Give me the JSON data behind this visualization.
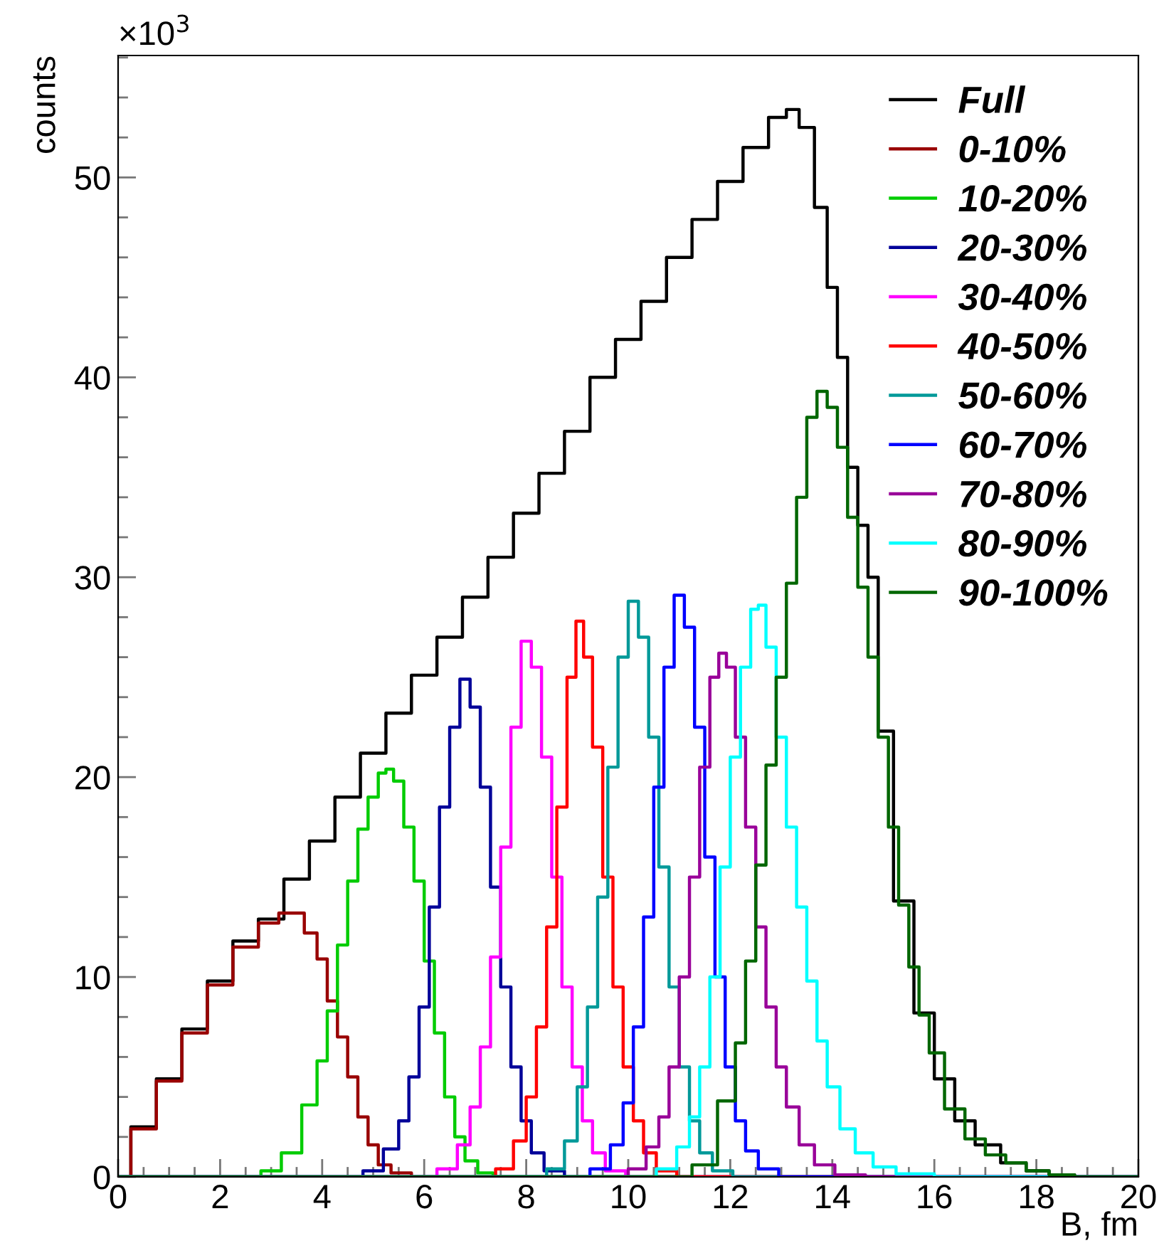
{
  "chart_data": {
    "type": "step",
    "xlabel": "B, fm",
    "ylabel": "counts",
    "annotations": [
      "×10$^{3}$"
    ],
    "xlim": [
      0,
      20
    ],
    "xticks": [
      0,
      2,
      4,
      6,
      8,
      10,
      12,
      14,
      16,
      18,
      20
    ],
    "ylim": [
      0,
      56.1
    ],
    "yticks": [
      0,
      10,
      20,
      30,
      40,
      50
    ],
    "grid": false,
    "legend": "top right",
    "series": [
      {
        "name": "Full",
        "color": "#000000",
        "x": [
          0,
          0.5,
          1,
          1.5,
          2,
          2.5,
          3,
          3.5,
          4,
          4.5,
          5,
          5.5,
          6,
          6.5,
          7,
          7.5,
          8,
          8.5,
          9,
          9.5,
          10,
          10.5,
          11,
          11.5,
          12,
          12.5,
          13,
          13.2,
          13.5,
          13.8,
          14,
          14.2,
          14.4,
          14.6,
          14.8,
          15,
          15.4,
          15.8,
          16.2,
          16.6,
          17,
          17.6,
          18,
          18.5,
          19,
          20
        ],
        "values": [
          0,
          2.5,
          4.9,
          7.4,
          9.8,
          11.8,
          12.9,
          14.9,
          16.8,
          19.0,
          21.2,
          23.2,
          25.1,
          27.0,
          29.0,
          31.0,
          33.2,
          35.2,
          37.3,
          40.0,
          41.9,
          43.8,
          46.0,
          47.9,
          49.8,
          51.5,
          53.0,
          53.4,
          52.5,
          48.5,
          44.5,
          41.0,
          35.5,
          32.6,
          30.0,
          22.3,
          13.8,
          8.2,
          4.9,
          2.8,
          1.6,
          0.7,
          0.3,
          0.1,
          0,
          0
        ]
      },
      {
        "name": "0-10%",
        "color": "#990000",
        "x": [
          0,
          0.5,
          1,
          1.5,
          2,
          2.5,
          3,
          3.3,
          3.5,
          3.8,
          4,
          4.2,
          4.4,
          4.6,
          4.8,
          5,
          5.2,
          5.5,
          6,
          20
        ],
        "values": [
          0,
          2.4,
          4.8,
          7.2,
          9.6,
          11.5,
          12.7,
          13.2,
          13.2,
          12.2,
          10.9,
          8.8,
          7.0,
          5.0,
          3.0,
          1.6,
          0.6,
          0.2,
          0,
          0
        ]
      },
      {
        "name": "10-20%",
        "color": "#00cc00",
        "x": [
          0,
          2.6,
          3,
          3.4,
          3.8,
          4,
          4.2,
          4.4,
          4.6,
          4.8,
          5,
          5.2,
          5.3,
          5.5,
          5.7,
          5.9,
          6.1,
          6.3,
          6.5,
          6.7,
          6.9,
          7.2,
          7.5,
          20
        ],
        "values": [
          0,
          0,
          0.3,
          1.2,
          3.6,
          5.8,
          8.3,
          11.6,
          14.8,
          17.4,
          19.0,
          20.2,
          20.4,
          19.8,
          17.5,
          14.8,
          10.8,
          7.2,
          4.0,
          2.0,
          0.8,
          0.2,
          0,
          0
        ]
      },
      {
        "name": "20-30%",
        "color": "#000099",
        "x": [
          0,
          4.6,
          5,
          5.4,
          5.6,
          5.8,
          6,
          6.2,
          6.4,
          6.6,
          6.8,
          7.0,
          7.2,
          7.4,
          7.6,
          7.8,
          8.0,
          8.2,
          8.5,
          9,
          20
        ],
        "values": [
          0,
          0,
          0.3,
          1.4,
          2.8,
          5.0,
          8.5,
          13.5,
          18.5,
          22.5,
          24.9,
          23.5,
          19.5,
          14.5,
          9.5,
          5.5,
          2.8,
          1.2,
          0.3,
          0,
          0
        ]
      },
      {
        "name": "30-40%",
        "color": "#ff00ff",
        "x": [
          0,
          6,
          6.5,
          6.8,
          7.0,
          7.2,
          7.4,
          7.6,
          7.8,
          8.0,
          8.2,
          8.4,
          8.6,
          8.8,
          9.0,
          9.2,
          9.4,
          9.7,
          10.2,
          20
        ],
        "values": [
          0,
          0,
          0.4,
          1.6,
          3.5,
          6.5,
          11.0,
          16.5,
          22.5,
          26.8,
          25.5,
          21.0,
          15.0,
          9.5,
          5.5,
          2.8,
          1.2,
          0.3,
          0,
          0
        ]
      },
      {
        "name": "40-50%",
        "color": "#ff0000",
        "x": [
          0,
          7.2,
          7.6,
          7.9,
          8.1,
          8.3,
          8.5,
          8.7,
          8.9,
          9.05,
          9.2,
          9.4,
          9.6,
          9.8,
          10.0,
          10.2,
          10.4,
          10.7,
          11.2,
          20
        ],
        "values": [
          0,
          0,
          0.4,
          1.8,
          4.0,
          7.5,
          12.5,
          18.5,
          25.0,
          27.8,
          26.0,
          21.5,
          15.0,
          9.5,
          5.5,
          2.8,
          1.2,
          0.3,
          0,
          0
        ]
      },
      {
        "name": "50-60%",
        "color": "#009999",
        "x": [
          0,
          8.2,
          8.6,
          8.9,
          9.1,
          9.3,
          9.5,
          9.7,
          9.9,
          10.1,
          10.3,
          10.5,
          10.7,
          10.9,
          11.1,
          11.3,
          11.5,
          11.8,
          12.3,
          20
        ],
        "values": [
          0,
          0,
          0.4,
          1.8,
          4.5,
          8.5,
          14.0,
          20.5,
          26.0,
          28.8,
          27.0,
          22.0,
          15.5,
          9.5,
          5.5,
          2.8,
          1.2,
          0.3,
          0,
          0
        ]
      },
      {
        "name": "60-70%",
        "color": "#0000ff",
        "x": [
          0,
          9.0,
          9.5,
          9.8,
          10.0,
          10.2,
          10.4,
          10.6,
          10.8,
          11.0,
          11.2,
          11.4,
          11.6,
          11.8,
          12.0,
          12.2,
          12.4,
          12.7,
          13.2,
          20
        ],
        "values": [
          0,
          0,
          0.4,
          1.6,
          3.7,
          7.5,
          13.0,
          19.5,
          25.5,
          29.1,
          27.5,
          22.5,
          16.0,
          10.0,
          5.5,
          2.8,
          1.3,
          0.4,
          0,
          0
        ]
      },
      {
        "name": "70-80%",
        "color": "#990099",
        "x": [
          0,
          9.8,
          10.2,
          10.5,
          10.7,
          10.9,
          11.1,
          11.3,
          11.5,
          11.7,
          11.85,
          12.0,
          12.2,
          12.4,
          12.6,
          12.8,
          13.0,
          13.2,
          13.5,
          13.8,
          14.3,
          15,
          20
        ],
        "values": [
          0,
          0,
          0.4,
          1.5,
          3.0,
          5.5,
          10.0,
          15.0,
          20.5,
          25.0,
          26.2,
          25.5,
          22.0,
          17.5,
          12.5,
          8.5,
          5.5,
          3.5,
          1.6,
          0.6,
          0.1,
          0,
          0
        ]
      },
      {
        "name": "80-90%",
        "color": "#00ffff",
        "x": [
          0,
          10.3,
          10.8,
          11.1,
          11.3,
          11.5,
          11.7,
          11.9,
          12.1,
          12.3,
          12.5,
          12.6,
          12.8,
          13.0,
          13.2,
          13.4,
          13.6,
          13.8,
          14.0,
          14.3,
          14.6,
          15.0,
          15.5,
          16.5,
          20
        ],
        "values": [
          0,
          0,
          0.4,
          1.5,
          3.0,
          5.5,
          10.0,
          15.5,
          21.0,
          25.5,
          28.4,
          28.6,
          26.5,
          22.0,
          17.5,
          13.5,
          9.8,
          6.8,
          4.5,
          2.4,
          1.2,
          0.5,
          0.15,
          0,
          0
        ]
      },
      {
        "name": "90-100%",
        "color": "#006600",
        "x": [
          0,
          11,
          11.5,
          12,
          12.2,
          12.4,
          12.6,
          12.8,
          13,
          13.2,
          13.4,
          13.6,
          13.8,
          14,
          14.2,
          14.4,
          14.6,
          14.8,
          15,
          15.2,
          15.4,
          15.6,
          15.8,
          16,
          16.4,
          16.8,
          17.2,
          17.6,
          18,
          18.5,
          19,
          20
        ],
        "values": [
          0,
          0,
          0.6,
          3.8,
          6.7,
          10.8,
          15.6,
          20.6,
          25.0,
          29.7,
          34.0,
          38.0,
          39.3,
          38.5,
          36.5,
          33.0,
          29.5,
          26.0,
          22.0,
          17.5,
          13.6,
          10.5,
          8.1,
          6.2,
          3.4,
          1.9,
          1.1,
          0.7,
          0.3,
          0.1,
          0,
          0
        ]
      }
    ]
  }
}
